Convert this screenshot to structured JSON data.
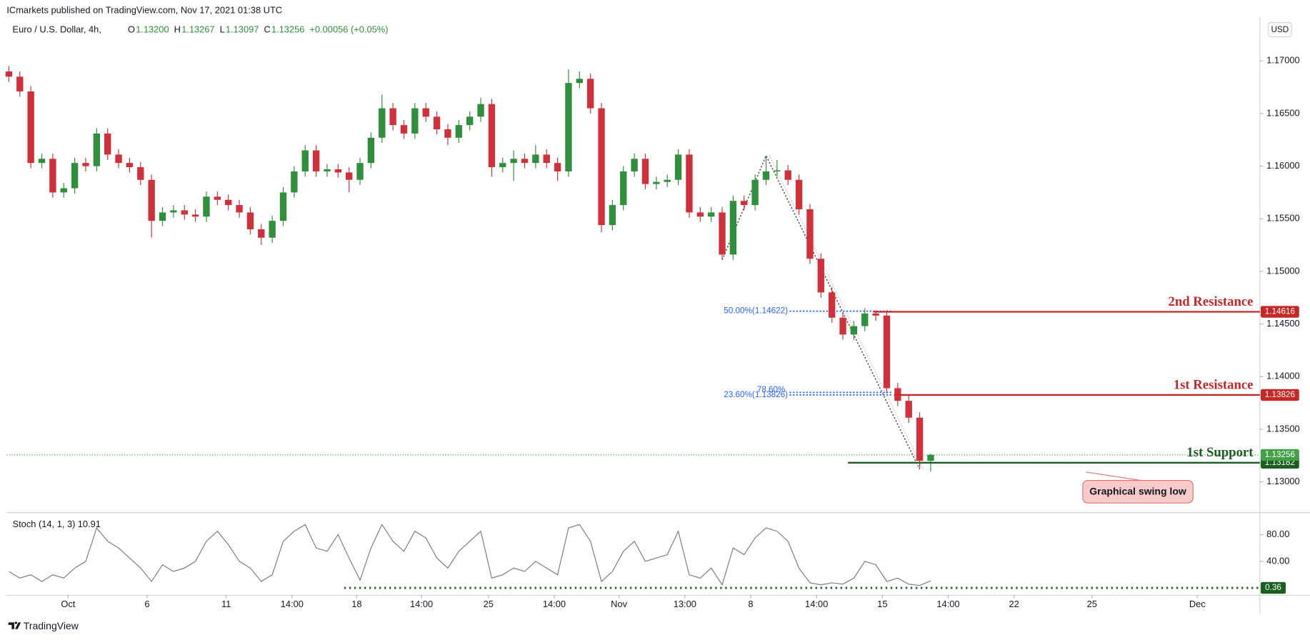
{
  "chart_data": {
    "type": "candlestick",
    "source": "ICmarkets published on TradingView.com, Nov 17, 2021 01:38 UTC",
    "title": "Euro / U.S. Dollar, 4h,",
    "ohlc_header": [
      {
        "label": "O",
        "value": "1.13200"
      },
      {
        "label": "H",
        "value": "1.13267"
      },
      {
        "label": "L",
        "value": "1.13097"
      },
      {
        "label": "C",
        "value": "1.13256"
      }
    ],
    "change": "+0.00056 (+0.05%)",
    "currency": "USD",
    "up_color": "#2f8f3a",
    "down_color": "#d1303a",
    "open": [
      1.169,
      1.1685,
      1.1671,
      1.1603,
      1.1607,
      1.1575,
      1.1579,
      1.1603,
      1.16,
      1.1631,
      1.1611,
      1.1603,
      1.1599,
      1.1587,
      1.1548,
      1.1556,
      1.1558,
      1.1554,
      1.1552,
      1.1571,
      1.1568,
      1.1563,
      1.1556,
      1.154,
      1.1532,
      1.1548,
      1.1575,
      1.1595,
      1.1615,
      1.1595,
      1.1597,
      1.1594,
      1.1587,
      1.1603,
      1.1627,
      1.1655,
      1.1639,
      1.1631,
      1.1655,
      1.1647,
      1.1635,
      1.1627,
      1.1639,
      1.1647,
      1.1659,
      1.1599,
      1.1603,
      1.1607,
      1.1603,
      1.1611,
      1.1603,
      1.1595,
      1.1679,
      1.1683,
      1.1655,
      1.1544,
      1.1563,
      1.1595,
      1.1607,
      1.1583,
      1.1585,
      1.1587,
      1.1611,
      1.1556,
      1.1552,
      1.1556,
      1.1516,
      1.1567,
      1.1563,
      1.1587,
      1.1595,
      1.1596,
      1.1587,
      1.1559,
      1.1512,
      1.148,
      1.1456,
      1.144,
      1.1448,
      1.146,
      1.1458,
      1.1389,
      1.1377,
      1.1361,
      1.132
    ],
    "high": [
      1.1695,
      1.169,
      1.1676,
      1.1612,
      1.1612,
      1.1584,
      1.1608,
      1.1608,
      1.1636,
      1.1636,
      1.1616,
      1.1608,
      1.1604,
      1.1592,
      1.1561,
      1.1563,
      1.1563,
      1.1559,
      1.1576,
      1.1576,
      1.1573,
      1.1568,
      1.1561,
      1.1545,
      1.1553,
      1.158,
      1.16,
      1.162,
      1.162,
      1.1602,
      1.1602,
      1.1599,
      1.1608,
      1.1632,
      1.1668,
      1.166,
      1.1644,
      1.166,
      1.166,
      1.1652,
      1.164,
      1.1644,
      1.1652,
      1.1665,
      1.1664,
      1.1608,
      1.1615,
      1.1612,
      1.162,
      1.1616,
      1.1608,
      1.1692,
      1.169,
      1.1688,
      1.166,
      1.1568,
      1.16,
      1.1612,
      1.1612,
      1.159,
      1.1592,
      1.1616,
      1.1616,
      1.1561,
      1.1561,
      1.1561,
      1.1572,
      1.1572,
      1.1592,
      1.161,
      1.1606,
      1.1601,
      1.1592,
      1.1564,
      1.1517,
      1.1485,
      1.1461,
      1.1453,
      1.1465,
      1.1463,
      1.1463,
      1.1394,
      1.1382,
      1.1366,
      1.13267
    ],
    "low": [
      1.168,
      1.1666,
      1.1598,
      1.1598,
      1.157,
      1.157,
      1.1574,
      1.1595,
      1.1595,
      1.1606,
      1.1598,
      1.1594,
      1.1582,
      1.1532,
      1.1543,
      1.1551,
      1.1549,
      1.1547,
      1.1547,
      1.1563,
      1.1558,
      1.1551,
      1.1535,
      1.1525,
      1.1527,
      1.1543,
      1.157,
      1.159,
      1.159,
      1.159,
      1.1589,
      1.1575,
      1.1582,
      1.1598,
      1.1622,
      1.1634,
      1.1626,
      1.1626,
      1.1642,
      1.163,
      1.162,
      1.1622,
      1.1634,
      1.1642,
      1.159,
      1.1594,
      1.1586,
      1.1598,
      1.1598,
      1.1598,
      1.1586,
      1.159,
      1.1674,
      1.165,
      1.1537,
      1.1539,
      1.1558,
      1.159,
      1.1578,
      1.1578,
      1.158,
      1.1582,
      1.1551,
      1.1547,
      1.1547,
      1.1511,
      1.1511,
      1.1558,
      1.1558,
      1.1582,
      1.159,
      1.1582,
      1.1554,
      1.1507,
      1.1475,
      1.1451,
      1.1435,
      1.1435,
      1.1443,
      1.1453,
      1.1384,
      1.1372,
      1.1356,
      1.1312,
      1.13097
    ],
    "close": [
      1.1685,
      1.1671,
      1.1603,
      1.1607,
      1.1575,
      1.1579,
      1.1603,
      1.16,
      1.1631,
      1.1611,
      1.1603,
      1.1599,
      1.1587,
      1.1548,
      1.1556,
      1.1558,
      1.1554,
      1.1552,
      1.1571,
      1.1568,
      1.1563,
      1.1556,
      1.154,
      1.1532,
      1.1548,
      1.1575,
      1.1595,
      1.1615,
      1.1595,
      1.1597,
      1.1594,
      1.1587,
      1.1603,
      1.1627,
      1.1655,
      1.1639,
      1.1631,
      1.1655,
      1.1647,
      1.1635,
      1.1627,
      1.1639,
      1.1647,
      1.1659,
      1.1599,
      1.1603,
      1.1607,
      1.1603,
      1.1611,
      1.1603,
      1.1595,
      1.1679,
      1.1683,
      1.1655,
      1.1544,
      1.1563,
      1.1595,
      1.1607,
      1.1583,
      1.1585,
      1.1587,
      1.1611,
      1.1556,
      1.1552,
      1.1556,
      1.1516,
      1.1567,
      1.1563,
      1.1587,
      1.1595,
      1.1596,
      1.1587,
      1.1559,
      1.1512,
      1.148,
      1.1456,
      1.144,
      1.1448,
      1.146,
      1.1458,
      1.1389,
      1.1377,
      1.1361,
      1.132,
      1.13256
    ],
    "xlim": [
      -0.2,
      114
    ],
    "xticks": [
      {
        "value": 5.4,
        "label": "Oct"
      },
      {
        "value": 12.6,
        "label": "6"
      },
      {
        "value": 19.8,
        "label": "11"
      },
      {
        "value": 25.8,
        "label": "14:00"
      },
      {
        "value": 31.7,
        "label": "18"
      },
      {
        "value": 37.6,
        "label": "14:00"
      },
      {
        "value": 43.7,
        "label": "25"
      },
      {
        "value": 49.7,
        "label": "14:00"
      },
      {
        "value": 55.6,
        "label": "Nov"
      },
      {
        "value": 61.6,
        "label": "13:00"
      },
      {
        "value": 67.6,
        "label": "8"
      },
      {
        "value": 73.6,
        "label": "14:00"
      },
      {
        "value": 79.6,
        "label": "15"
      },
      {
        "value": 85.6,
        "label": "14:00"
      },
      {
        "value": 91.6,
        "label": "22"
      },
      {
        "value": 98.7,
        "label": "25"
      },
      {
        "value": 108.3,
        "label": "Dec"
      }
    ],
    "ylim": [
      1.1272,
      1.1738
    ],
    "yticks": [
      {
        "value": 1.17,
        "label": "1.17000"
      },
      {
        "value": 1.165,
        "label": "1.16500"
      },
      {
        "value": 1.16,
        "label": "1.16000"
      },
      {
        "value": 1.155,
        "label": "1.15500"
      },
      {
        "value": 1.15,
        "label": "1.15000"
      },
      {
        "value": 1.145,
        "label": "1.14500"
      },
      {
        "value": 1.14,
        "label": "1.14000"
      },
      {
        "value": 1.135,
        "label": "1.13500"
      },
      {
        "value": 1.13,
        "label": "1.13000"
      }
    ],
    "price_line_color": "#43a047",
    "levels": [
      {
        "name": "2nd Resistance",
        "value": 1.14616,
        "color": "#c62828"
      },
      {
        "name": "1st Resistance",
        "value": 1.13826,
        "color": "#c62828"
      },
      {
        "name": "1st Support",
        "value": 1.13182,
        "color": "#1b5e20"
      }
    ],
    "fib": [
      {
        "label": "50.00%(1.14622)",
        "value": 1.14622
      },
      {
        "label": "23.60%(1.13826)",
        "value": 1.13826
      },
      {
        "label": "78.60%",
        "value": 1.1385
      }
    ],
    "fib_color": "#2962ff",
    "annotation": "Graphical swing low",
    "indicator": {
      "name": "Stoch (14, 1, 3)",
      "color": "#787b86",
      "values": [
        25,
        15,
        20,
        10,
        20,
        15,
        30,
        40,
        90,
        70,
        60,
        45,
        30,
        10,
        35,
        25,
        30,
        40,
        70,
        85,
        65,
        40,
        30,
        10,
        20,
        70,
        85,
        95,
        60,
        55,
        80,
        45,
        12,
        60,
        95,
        70,
        55,
        85,
        75,
        45,
        30,
        55,
        70,
        85,
        15,
        20,
        30,
        25,
        40,
        30,
        20,
        90,
        95,
        70,
        10,
        25,
        55,
        70,
        40,
        45,
        50,
        85,
        20,
        15,
        30,
        5,
        60,
        50,
        75,
        90,
        85,
        70,
        30,
        8,
        5,
        8,
        6,
        15,
        40,
        35,
        10,
        15,
        6,
        4,
        10.91
      ],
      "ylim": [
        -10,
        111
      ],
      "yticks": [
        {
          "value": 80,
          "label": "80.00"
        },
        {
          "value": 40,
          "label": "40.00"
        }
      ],
      "reference": 0.36,
      "reference_color": "#1b5e20"
    },
    "footer": "TradingView"
  }
}
